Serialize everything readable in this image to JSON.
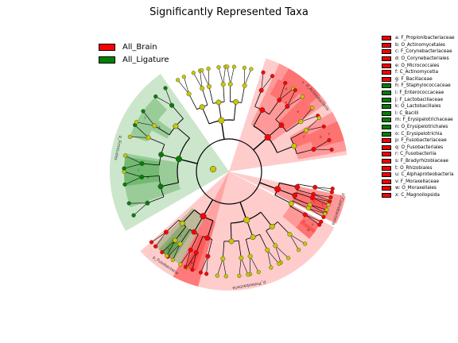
{
  "title": "Significantly Represented Taxa",
  "colors": {
    "brain": "#ff0000",
    "ligature": "#008000",
    "neutral_node": "#c8c800",
    "brain_shade": "#ff0000",
    "ligature_shade": "#008000"
  },
  "groups": [
    {
      "name": "All_Brain",
      "color": "#ff0000"
    },
    {
      "name": "All_Ligature",
      "color": "#008000"
    }
  ],
  "taxa_legend": [
    {
      "label": "a: F_Propionibacteriaceae",
      "group": "All_Brain"
    },
    {
      "label": "b: O_Actinomycetales",
      "group": "All_Brain"
    },
    {
      "label": "c: F_Corynebacteriaceae",
      "group": "All_Brain"
    },
    {
      "label": "d: O_Corynebacteriales",
      "group": "All_Brain"
    },
    {
      "label": "e: O_Micrococcales",
      "group": "All_Brain"
    },
    {
      "label": "f: C_Actinomycetia",
      "group": "All_Brain"
    },
    {
      "label": "g: F_Bacillaceae",
      "group": "All_Brain"
    },
    {
      "label": "h: F_Staphylococcaceae",
      "group": "All_Ligature"
    },
    {
      "label": "i: F_Enterococcaceae",
      "group": "All_Ligature"
    },
    {
      "label": "j: F_Lactobacillaceae",
      "group": "All_Ligature"
    },
    {
      "label": "k: O_Lactobacillales",
      "group": "All_Ligature"
    },
    {
      "label": "l: C_Bacilli",
      "group": "All_Ligature"
    },
    {
      "label": "m: F_Erysipelotrichaceae",
      "group": "All_Ligature"
    },
    {
      "label": "n: O_Erysipelotrichales",
      "group": "All_Ligature"
    },
    {
      "label": "o: C_Erysipelotrichia",
      "group": "All_Ligature"
    },
    {
      "label": "p: F_Fusobacteriaceae",
      "group": "All_Brain"
    },
    {
      "label": "q: O_Fusobacteriales",
      "group": "All_Brain"
    },
    {
      "label": "r: C_Fusobacteriia",
      "group": "All_Brain"
    },
    {
      "label": "s: F_Bradyrhizobiaceae",
      "group": "All_Brain"
    },
    {
      "label": "t: O_Rhizobiales",
      "group": "All_Brain"
    },
    {
      "label": "u: C_Alphaproteobacteria",
      "group": "All_Brain"
    },
    {
      "label": "v: F_Moraxellaceae",
      "group": "All_Brain"
    },
    {
      "label": "w: O_Moraxellales",
      "group": "All_Brain"
    },
    {
      "label": "x: C_Magnoliopsida",
      "group": "All_Brain"
    }
  ],
  "chart_data": {
    "type": "cladogram",
    "center_label": ".",
    "phyla": [
      {
        "label": "p_Actinobacteria",
        "group": "All_Brain"
      },
      {
        "label": "p_Firmicutes",
        "group": "All_Ligature"
      },
      {
        "label": "p_Proteobacteria",
        "group": "All_Brain"
      },
      {
        "label": "p_Fusobacteria",
        "group": "All_Brain"
      },
      {
        "label": "p_Cyanobacteria",
        "group": "All_Brain"
      }
    ],
    "inner_sector_letters": [
      "a",
      "b",
      "c",
      "d",
      "e",
      "f",
      "h",
      "i",
      "j",
      "k",
      "l",
      "m",
      "n",
      "o",
      "p",
      "q",
      "r",
      "s",
      "t",
      "u",
      "v",
      "w",
      "x"
    ]
  }
}
